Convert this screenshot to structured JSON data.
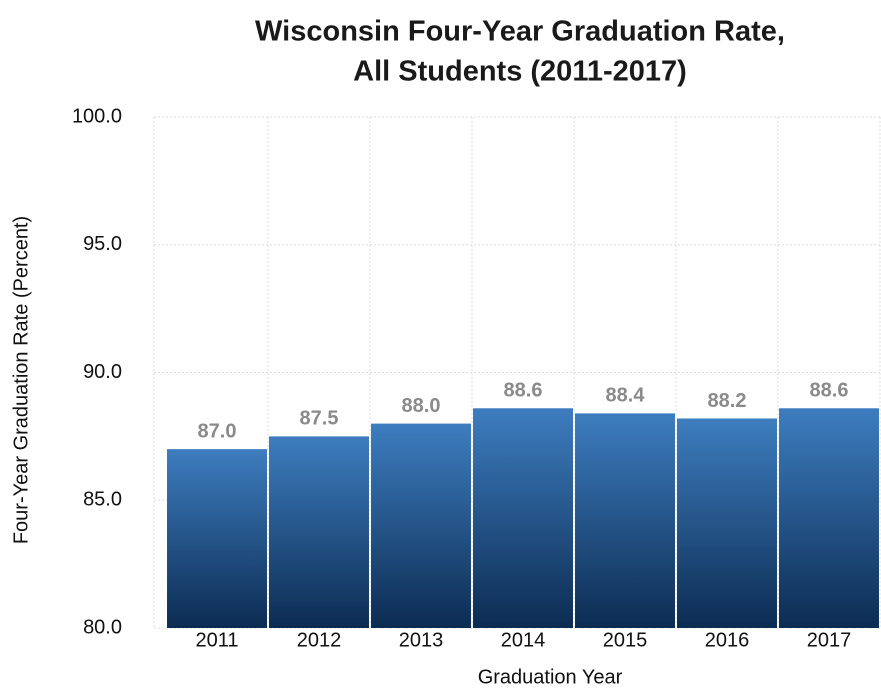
{
  "chart_data": {
    "type": "bar",
    "title": [
      "Wisconsin Four-Year Graduation Rate,",
      "All Students (2011-2017)"
    ],
    "x_label": "Graduation Year",
    "y_label": "Four-Year Graduation Rate (Percent)",
    "categories": [
      "2011",
      "2012",
      "2013",
      "2014",
      "2015",
      "2016",
      "2017"
    ],
    "values": [
      87.0,
      87.5,
      88.0,
      88.6,
      88.4,
      88.2,
      88.6
    ],
    "value_labels": [
      "87.0",
      "87.5",
      "88.0",
      "88.6",
      "88.4",
      "88.2",
      "88.6"
    ],
    "color": "#3d7dbf",
    "ylim": [
      80,
      100
    ],
    "yticks": [
      {
        "value": 80,
        "label": "80.0"
      },
      {
        "value": 85,
        "label": "85.0"
      },
      {
        "value": 90,
        "label": "90.0"
      },
      {
        "value": 95,
        "label": "95.0"
      },
      {
        "value": 100,
        "label": "100.0"
      }
    ],
    "grid": true
  }
}
